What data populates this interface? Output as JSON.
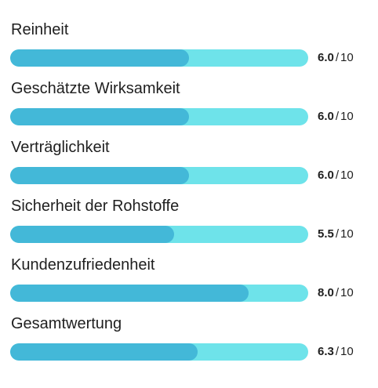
{
  "colors": {
    "track": "#6ee3ea",
    "fill": "#43b8d8",
    "text": "#1f1f1f"
  },
  "ratings": [
    {
      "label": "Reinheit",
      "score": "6.0",
      "max": "10",
      "fraction": 0.6
    },
    {
      "label": "Geschätzte Wirksamkeit",
      "score": "6.0",
      "max": "10",
      "fraction": 0.6
    },
    {
      "label": "Verträglichkeit",
      "score": "6.0",
      "max": "10",
      "fraction": 0.6
    },
    {
      "label": "Sicherheit der Rohstoffe",
      "score": "5.5",
      "max": "10",
      "fraction": 0.55
    },
    {
      "label": "Kundenzufriedenheit",
      "score": "8.0",
      "max": "10",
      "fraction": 0.8
    },
    {
      "label": "Gesamtwertung",
      "score": "6.3",
      "max": "10",
      "fraction": 0.63
    }
  ]
}
